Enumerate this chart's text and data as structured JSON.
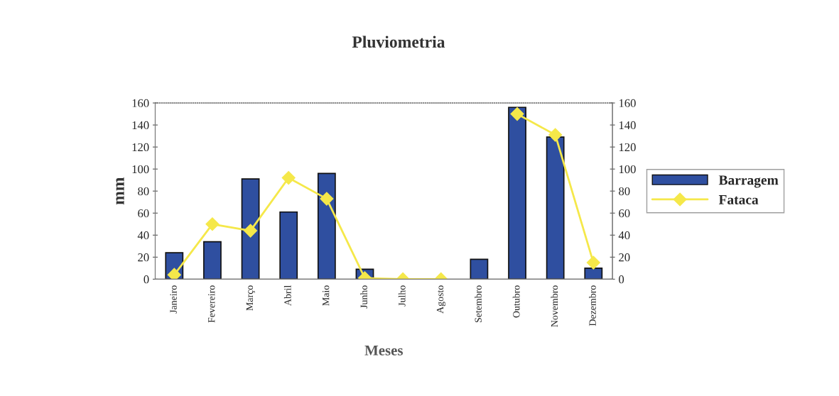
{
  "chart_data": {
    "type": "bar",
    "title": "Pluviometria",
    "xlabel": "Meses",
    "ylabel": "mm",
    "categories": [
      "Janeiro",
      "Fevereiro",
      "Março",
      "Abril",
      "Maio",
      "Junho",
      "Julho",
      "Agosto",
      "Setembro",
      "Outubro",
      "Novembro",
      "Dezembro"
    ],
    "series": [
      {
        "name": "Barragem",
        "color": "#2f4fa0",
        "values": [
          24,
          34,
          91,
          61,
          96,
          9,
          null,
          null,
          18,
          156,
          129,
          10
        ]
      },
      {
        "name": "Fataca",
        "type": "line",
        "color": "#f5e84a",
        "values": [
          4,
          50,
          44,
          92,
          73,
          1,
          0,
          0,
          null,
          150,
          131,
          15
        ]
      }
    ],
    "ylim": [
      0,
      160
    ],
    "yticks": [
      0,
      20,
      40,
      60,
      80,
      100,
      120,
      140,
      160
    ],
    "y2lim": [
      0,
      160
    ],
    "y2ticks": [
      0,
      20,
      40,
      60,
      80,
      100,
      120,
      140,
      160
    ],
    "marker": "diamond",
    "grid": false,
    "legend": "right"
  }
}
